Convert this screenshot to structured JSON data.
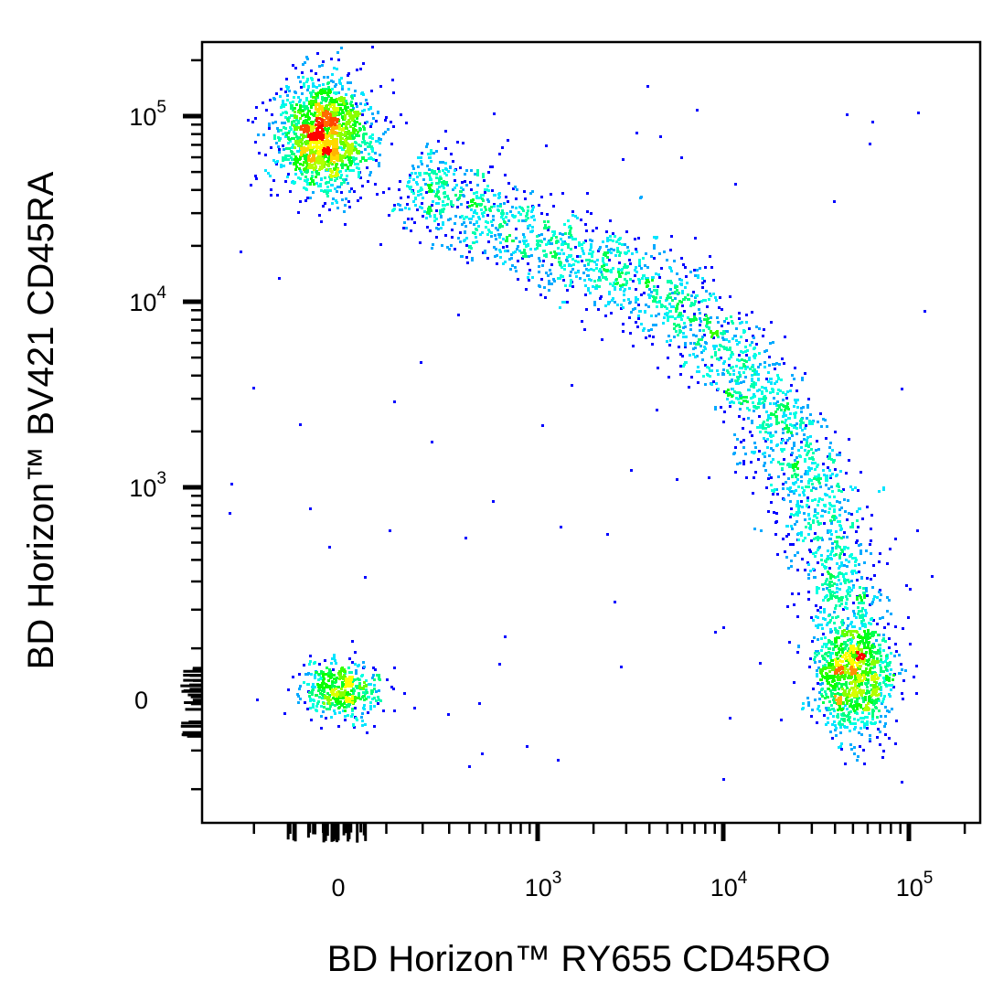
{
  "chart_data": {
    "type": "scatter",
    "style": "density dot plot",
    "xlabel": "BD Horizon™ RY655 CD45RO",
    "ylabel": "BD Horizon™ BV421 CD45RA",
    "x_scale": "biexponential",
    "y_scale": "biexponential",
    "xlim": [
      -300,
      200000
    ],
    "ylim": [
      -300,
      200000
    ],
    "x_ticks": [
      {
        "value": 0,
        "base": "0",
        "exp": ""
      },
      {
        "value": 1000,
        "base": "10",
        "exp": "3"
      },
      {
        "value": 10000,
        "base": "10",
        "exp": "4"
      },
      {
        "value": 100000,
        "base": "10",
        "exp": "5"
      }
    ],
    "y_ticks": [
      {
        "value": 0,
        "base": "0",
        "exp": ""
      },
      {
        "value": 1000,
        "base": "10",
        "exp": "3"
      },
      {
        "value": 10000,
        "base": "10",
        "exp": "4"
      },
      {
        "value": 100000,
        "base": "10",
        "exp": "5"
      }
    ],
    "grid": false,
    "colormap": [
      "#0000ff",
      "#00ffff",
      "#00ff00",
      "#ffff00",
      "#ff0000"
    ],
    "populations": [
      {
        "x": -30,
        "y": 80000,
        "n": 1500
      },
      {
        "x": 0,
        "y": 20,
        "n": 450
      },
      {
        "x": 50000,
        "y": 40,
        "n": 900
      }
    ],
    "arc": {
      "points": [
        [
          150,
          50000
        ],
        [
          1000,
          20000
        ],
        [
          3000,
          15000
        ],
        [
          8000,
          7000
        ],
        [
          15000,
          3500
        ],
        [
          30000,
          1000
        ],
        [
          45000,
          300
        ],
        [
          50000,
          40
        ]
      ],
      "n": 2600
    }
  }
}
